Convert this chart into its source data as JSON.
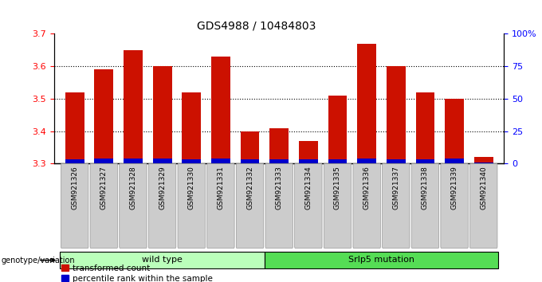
{
  "title": "GDS4988 / 10484803",
  "samples": [
    "GSM921326",
    "GSM921327",
    "GSM921328",
    "GSM921329",
    "GSM921330",
    "GSM921331",
    "GSM921332",
    "GSM921333",
    "GSM921334",
    "GSM921335",
    "GSM921336",
    "GSM921337",
    "GSM921338",
    "GSM921339",
    "GSM921340"
  ],
  "transformed_counts": [
    3.52,
    3.59,
    3.65,
    3.6,
    3.52,
    3.63,
    3.4,
    3.41,
    3.37,
    3.51,
    3.67,
    3.6,
    3.52,
    3.5,
    3.32
  ],
  "percentile_ranks_pct": [
    3,
    4,
    4,
    4,
    3,
    4,
    3,
    3,
    3,
    3,
    4,
    3,
    3,
    4,
    1
  ],
  "ylim_left": [
    3.3,
    3.7
  ],
  "ylim_right": [
    0,
    100
  ],
  "yticks_left": [
    3.3,
    3.4,
    3.5,
    3.6,
    3.7
  ],
  "yticks_right": [
    0,
    25,
    50,
    75,
    100
  ],
  "ytick_labels_right": [
    "0",
    "25",
    "50",
    "75",
    "100%"
  ],
  "bar_color_red": "#cc1100",
  "bar_color_blue": "#0000cc",
  "wild_type_count": 7,
  "group_labels": [
    "wild type",
    "Srlp5 mutation"
  ],
  "group_color_light": "#bbffbb",
  "group_color_dark": "#55dd55",
  "legend_red": "transformed count",
  "legend_blue": "percentile rank within the sample",
  "genotype_label": "genotype/variation",
  "bar_width": 0.65,
  "baseline": 3.3,
  "grid_lines": [
    3.4,
    3.5,
    3.6
  ]
}
